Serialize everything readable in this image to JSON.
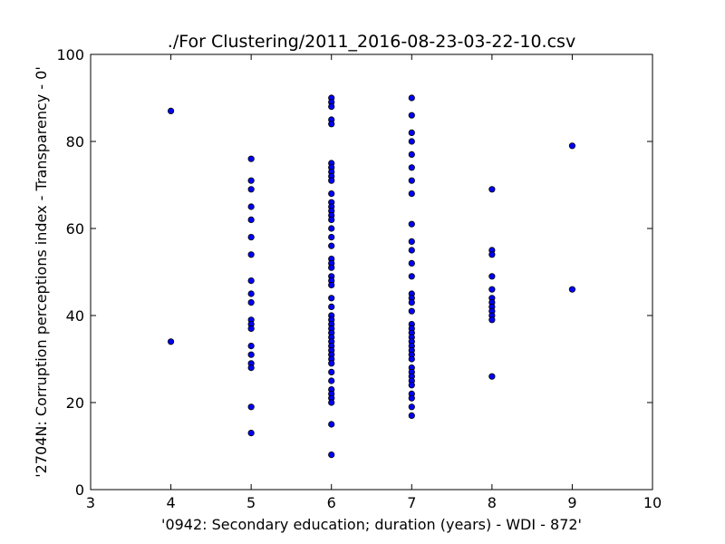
{
  "chart_data": {
    "type": "scatter",
    "title": "./For Clustering/2011_2016-08-23-03-22-10.csv",
    "xlabel": "'0942: Secondary education; duration  (years) - WDI - 872'",
    "ylabel": "'2704N: Corruption perceptions index - Transparency - 0'",
    "xlim": [
      3,
      10
    ],
    "ylim": [
      0,
      100
    ],
    "xticks": [
      3,
      4,
      5,
      6,
      7,
      8,
      9,
      10
    ],
    "yticks": [
      0,
      20,
      40,
      60,
      80,
      100
    ],
    "grid": false,
    "marker_color": "#0000ff",
    "marker_edge": "#000000",
    "points": [
      {
        "x": 4,
        "y": 87
      },
      {
        "x": 4,
        "y": 34
      },
      {
        "x": 5,
        "y": 76
      },
      {
        "x": 5,
        "y": 71
      },
      {
        "x": 5,
        "y": 69
      },
      {
        "x": 5,
        "y": 65
      },
      {
        "x": 5,
        "y": 62
      },
      {
        "x": 5,
        "y": 58
      },
      {
        "x": 5,
        "y": 54
      },
      {
        "x": 5,
        "y": 48
      },
      {
        "x": 5,
        "y": 45
      },
      {
        "x": 5,
        "y": 43
      },
      {
        "x": 5,
        "y": 39
      },
      {
        "x": 5,
        "y": 38
      },
      {
        "x": 5,
        "y": 37
      },
      {
        "x": 5,
        "y": 33
      },
      {
        "x": 5,
        "y": 31
      },
      {
        "x": 5,
        "y": 29
      },
      {
        "x": 5,
        "y": 28
      },
      {
        "x": 5,
        "y": 19
      },
      {
        "x": 5,
        "y": 13
      },
      {
        "x": 6,
        "y": 90
      },
      {
        "x": 6,
        "y": 89
      },
      {
        "x": 6,
        "y": 88
      },
      {
        "x": 6,
        "y": 85
      },
      {
        "x": 6,
        "y": 84
      },
      {
        "x": 6,
        "y": 75
      },
      {
        "x": 6,
        "y": 74
      },
      {
        "x": 6,
        "y": 73
      },
      {
        "x": 6,
        "y": 72
      },
      {
        "x": 6,
        "y": 71
      },
      {
        "x": 6,
        "y": 68
      },
      {
        "x": 6,
        "y": 66
      },
      {
        "x": 6,
        "y": 65
      },
      {
        "x": 6,
        "y": 64
      },
      {
        "x": 6,
        "y": 63
      },
      {
        "x": 6,
        "y": 62
      },
      {
        "x": 6,
        "y": 60
      },
      {
        "x": 6,
        "y": 58
      },
      {
        "x": 6,
        "y": 56
      },
      {
        "x": 6,
        "y": 53
      },
      {
        "x": 6,
        "y": 52
      },
      {
        "x": 6,
        "y": 51
      },
      {
        "x": 6,
        "y": 49
      },
      {
        "x": 6,
        "y": 48
      },
      {
        "x": 6,
        "y": 47
      },
      {
        "x": 6,
        "y": 44
      },
      {
        "x": 6,
        "y": 42
      },
      {
        "x": 6,
        "y": 40
      },
      {
        "x": 6,
        "y": 39
      },
      {
        "x": 6,
        "y": 38
      },
      {
        "x": 6,
        "y": 37
      },
      {
        "x": 6,
        "y": 36
      },
      {
        "x": 6,
        "y": 35
      },
      {
        "x": 6,
        "y": 34
      },
      {
        "x": 6,
        "y": 33
      },
      {
        "x": 6,
        "y": 32
      },
      {
        "x": 6,
        "y": 31
      },
      {
        "x": 6,
        "y": 30
      },
      {
        "x": 6,
        "y": 29
      },
      {
        "x": 6,
        "y": 27
      },
      {
        "x": 6,
        "y": 25
      },
      {
        "x": 6,
        "y": 23
      },
      {
        "x": 6,
        "y": 22
      },
      {
        "x": 6,
        "y": 21
      },
      {
        "x": 6,
        "y": 20
      },
      {
        "x": 6,
        "y": 15
      },
      {
        "x": 6,
        "y": 8
      },
      {
        "x": 7,
        "y": 90
      },
      {
        "x": 7,
        "y": 86
      },
      {
        "x": 7,
        "y": 82
      },
      {
        "x": 7,
        "y": 80
      },
      {
        "x": 7,
        "y": 77
      },
      {
        "x": 7,
        "y": 74
      },
      {
        "x": 7,
        "y": 71
      },
      {
        "x": 7,
        "y": 68
      },
      {
        "x": 7,
        "y": 61
      },
      {
        "x": 7,
        "y": 57
      },
      {
        "x": 7,
        "y": 55
      },
      {
        "x": 7,
        "y": 52
      },
      {
        "x": 7,
        "y": 49
      },
      {
        "x": 7,
        "y": 45
      },
      {
        "x": 7,
        "y": 44
      },
      {
        "x": 7,
        "y": 43
      },
      {
        "x": 7,
        "y": 41
      },
      {
        "x": 7,
        "y": 38
      },
      {
        "x": 7,
        "y": 37
      },
      {
        "x": 7,
        "y": 36
      },
      {
        "x": 7,
        "y": 35
      },
      {
        "x": 7,
        "y": 34
      },
      {
        "x": 7,
        "y": 33
      },
      {
        "x": 7,
        "y": 32
      },
      {
        "x": 7,
        "y": 31
      },
      {
        "x": 7,
        "y": 30
      },
      {
        "x": 7,
        "y": 28
      },
      {
        "x": 7,
        "y": 27
      },
      {
        "x": 7,
        "y": 26
      },
      {
        "x": 7,
        "y": 25
      },
      {
        "x": 7,
        "y": 24
      },
      {
        "x": 7,
        "y": 22
      },
      {
        "x": 7,
        "y": 21
      },
      {
        "x": 7,
        "y": 19
      },
      {
        "x": 7,
        "y": 17
      },
      {
        "x": 8,
        "y": 69
      },
      {
        "x": 8,
        "y": 55
      },
      {
        "x": 8,
        "y": 54
      },
      {
        "x": 8,
        "y": 49
      },
      {
        "x": 8,
        "y": 46
      },
      {
        "x": 8,
        "y": 44
      },
      {
        "x": 8,
        "y": 43
      },
      {
        "x": 8,
        "y": 42
      },
      {
        "x": 8,
        "y": 41
      },
      {
        "x": 8,
        "y": 40
      },
      {
        "x": 8,
        "y": 39
      },
      {
        "x": 8,
        "y": 26
      },
      {
        "x": 9,
        "y": 79
      },
      {
        "x": 9,
        "y": 46
      }
    ]
  }
}
